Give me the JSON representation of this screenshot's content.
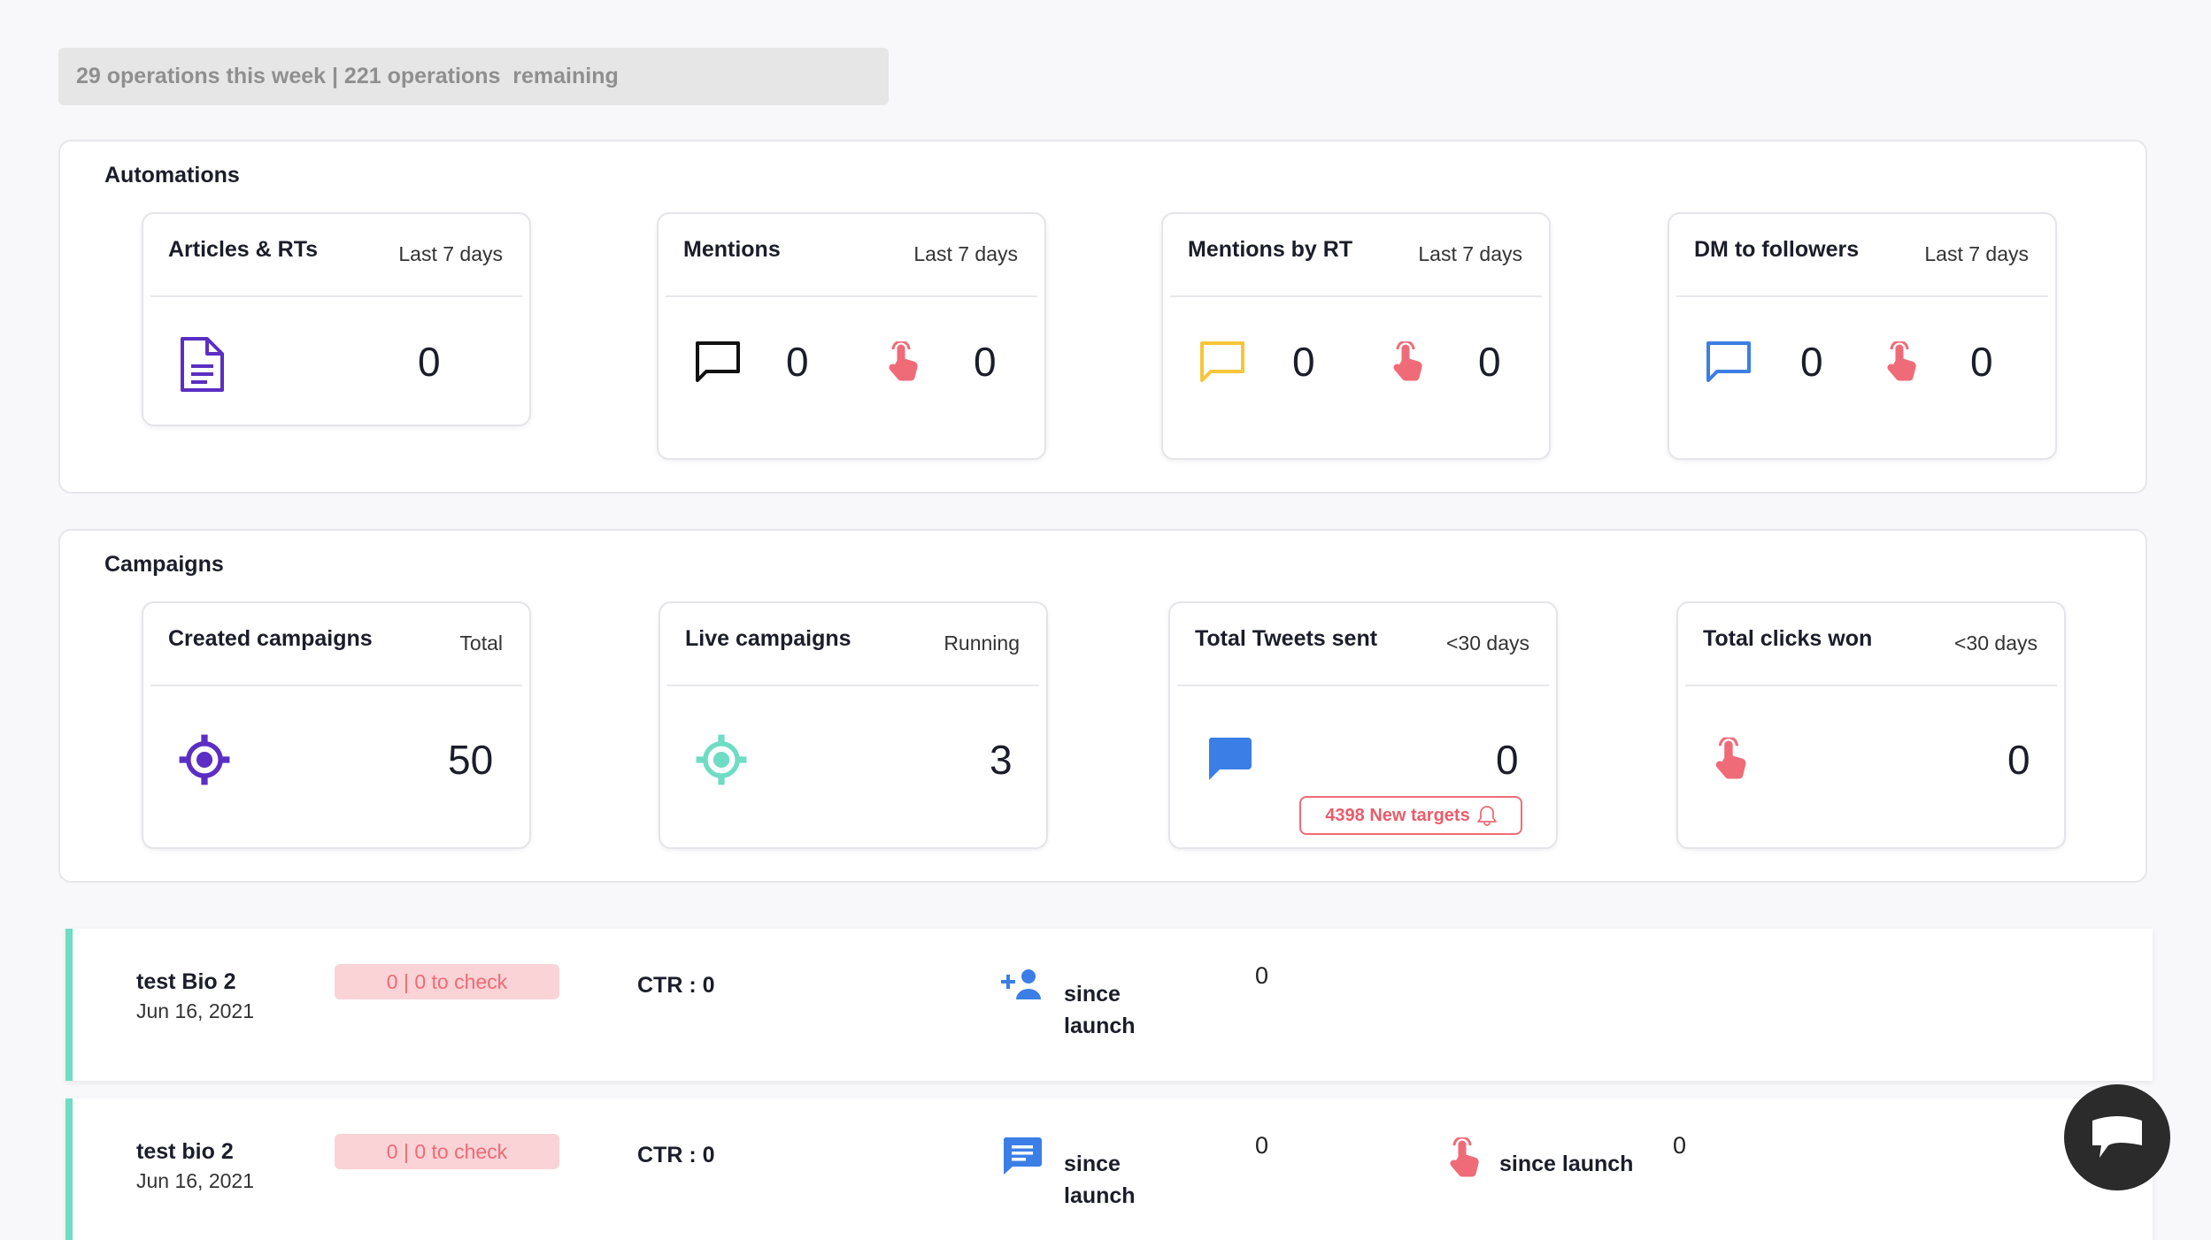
{
  "ops_banner": "29 operations this week | 221 operations  remaining",
  "automations": {
    "title": "Automations",
    "cards": [
      {
        "title": "Articles & RTs",
        "period": "Last 7 days",
        "icon": "document-icon",
        "value": "0"
      },
      {
        "title": "Mentions",
        "period": "Last 7 days",
        "icon": "chat-outline-icon",
        "value": "0",
        "click_icon": "tap-hand-icon",
        "clicks": "0"
      },
      {
        "title": "Mentions by RT",
        "period": "Last 7 days",
        "icon": "chat-outline-icon",
        "value": "0",
        "click_icon": "tap-hand-icon",
        "clicks": "0"
      },
      {
        "title": "DM to followers",
        "period": "Last 7 days",
        "icon": "chat-outline-icon",
        "value": "0",
        "click_icon": "tap-hand-icon",
        "clicks": "0"
      }
    ]
  },
  "campaigns": {
    "title": "Campaigns",
    "cards": [
      {
        "title": "Created campaigns",
        "period": "Total",
        "icon": "target-icon",
        "value": "50"
      },
      {
        "title": "Live campaigns",
        "period": "Running",
        "icon": "target-icon",
        "value": "3"
      },
      {
        "title": "Total Tweets sent",
        "period": "<30 days",
        "icon": "chat-filled-icon",
        "value": "0",
        "badge": "4398 New targets",
        "badge_icon": "bell-icon"
      },
      {
        "title": "Total clicks won",
        "period": "<30 days",
        "icon": "tap-hand-icon",
        "value": "0"
      }
    ]
  },
  "colors": {
    "document": "#5b2ec4",
    "mentions_chat": "#111111",
    "mentions_rt_chat": "#f5c63a",
    "dm_chat": "#3b7ee6",
    "tap": "#ef6b78",
    "target_created": "#5b2ec4",
    "target_live": "#6fdcc4",
    "tweet_chat": "#3b7ee6",
    "accent_row": "#6fdcc4"
  },
  "campaign_rows": [
    {
      "name": "test Bio 2",
      "date": "Jun 16, 2021",
      "badge": "0 | 0 to check",
      "ctr": "CTR : 0",
      "metric1_icon": "add-user-icon",
      "metric1_label_line1": "since",
      "metric1_label_line2": "launch",
      "metric1_value": "0"
    },
    {
      "name": "test bio 2",
      "date": "Jun 16, 2021",
      "badge": "0 | 0 to check",
      "ctr": "CTR : 0",
      "metric1_icon": "message-icon",
      "metric1_label_line1": "since",
      "metric1_label_line2": "launch",
      "metric1_value": "0",
      "metric2_icon": "tap-hand-icon",
      "metric2_label": "since launch",
      "metric2_value": "0"
    }
  ],
  "chat_widget": {
    "icon": "chat-widget-icon"
  }
}
